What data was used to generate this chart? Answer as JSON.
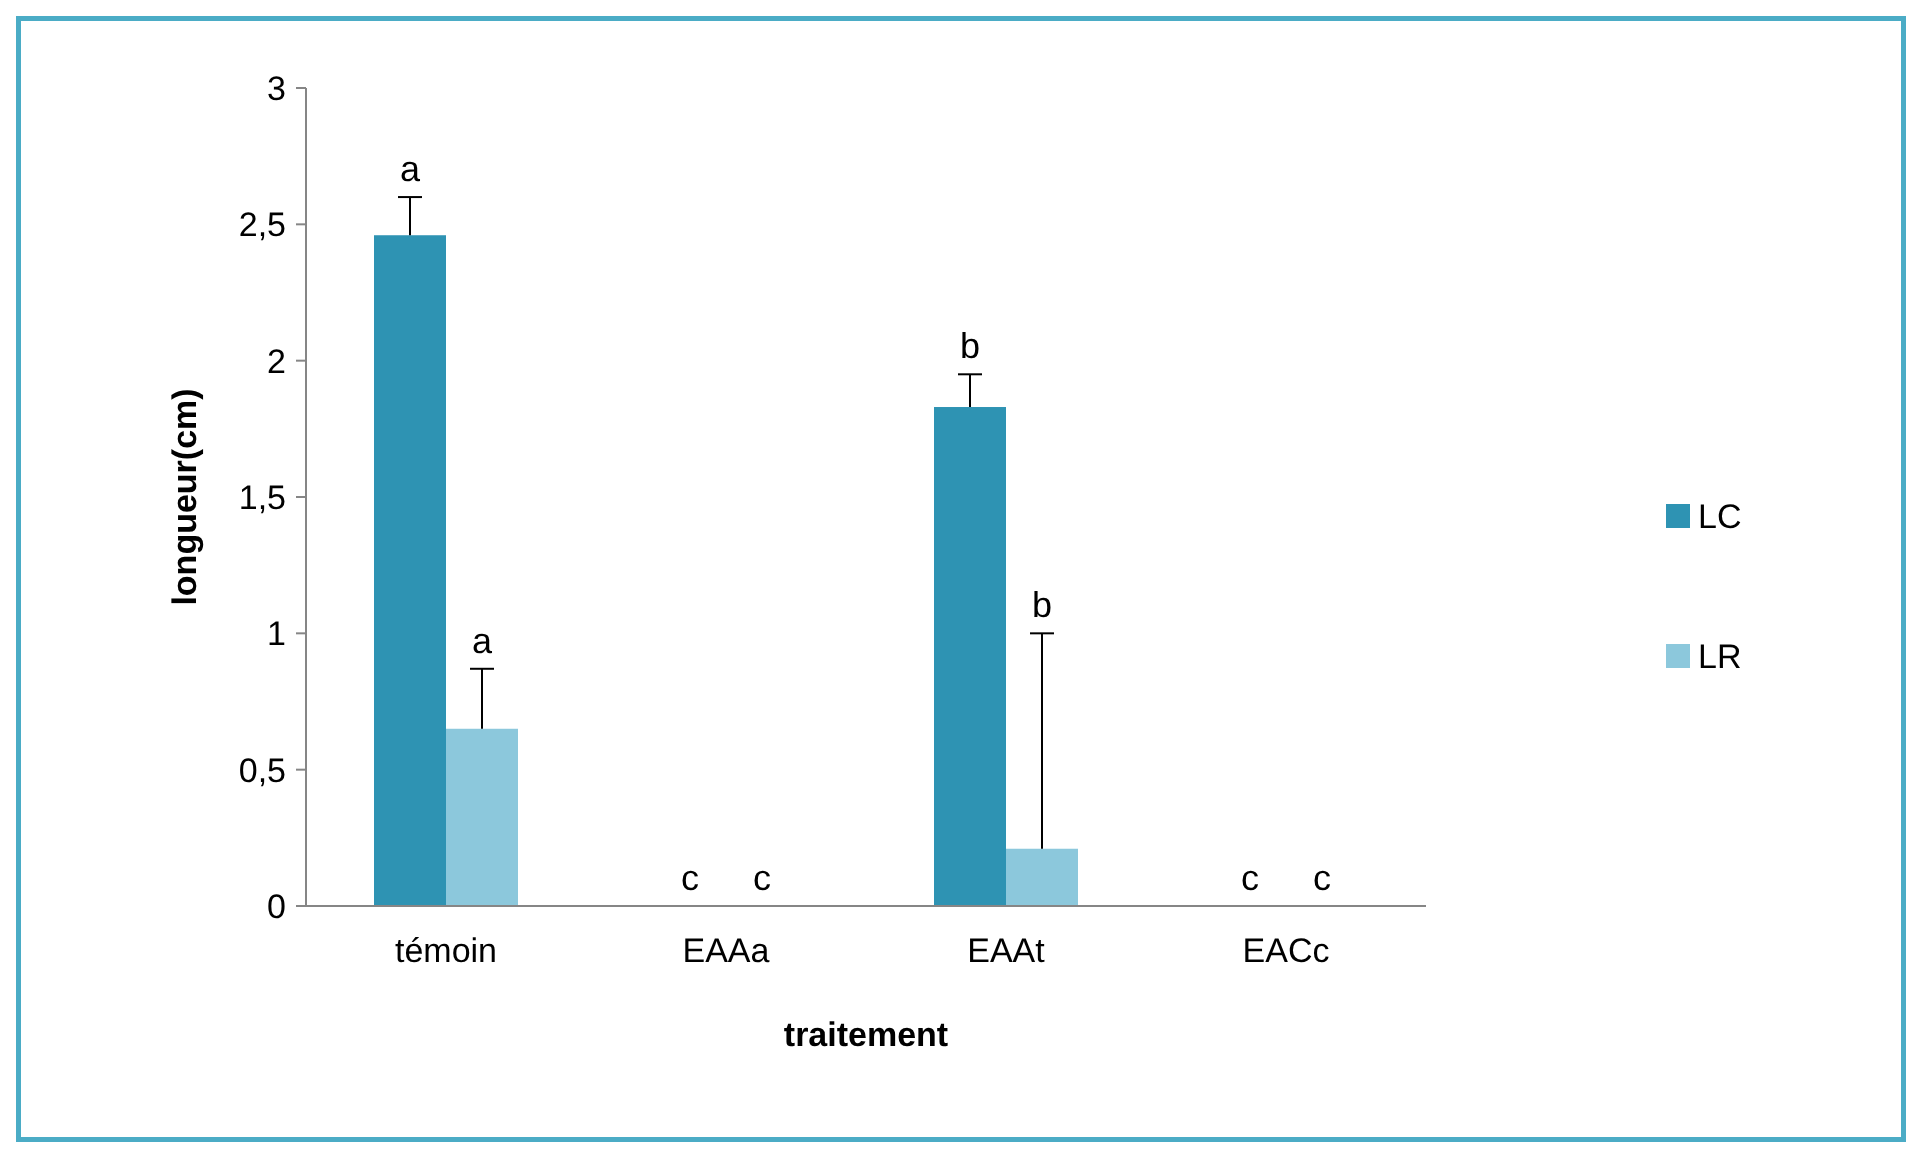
{
  "chart_data": {
    "type": "bar",
    "xlabel": "traitement",
    "ylabel": "longueur(cm)",
    "categories": [
      "témoin",
      "EAAa",
      "EAAt",
      "EACc"
    ],
    "series": [
      {
        "name": "LC",
        "color": "#2e93b3",
        "values": [
          2.46,
          0,
          1.83,
          0
        ],
        "errors": [
          [
            2.46,
            2.6
          ],
          null,
          [
            1.83,
            1.95
          ],
          null
        ]
      },
      {
        "name": "LR",
        "color": "#8cc8dc",
        "values": [
          0.65,
          0,
          0.21,
          0
        ],
        "errors": [
          [
            0.65,
            0.87
          ],
          null,
          [
            0.21,
            1.0
          ],
          null
        ]
      }
    ],
    "ylim": [
      0,
      3
    ],
    "yticks": [
      {
        "value": 0,
        "label": "0"
      },
      {
        "value": 0.5,
        "label": "0,5"
      },
      {
        "value": 1,
        "label": "1"
      },
      {
        "value": 1.5,
        "label": "1,5"
      },
      {
        "value": 2,
        "label": "2"
      },
      {
        "value": 2.5,
        "label": "2,5"
      },
      {
        "value": 3,
        "label": "3"
      }
    ],
    "annotations": [
      "a",
      "a",
      "c",
      "c",
      "b",
      "b",
      "c",
      "c"
    ],
    "legend": "right",
    "grid": false
  }
}
